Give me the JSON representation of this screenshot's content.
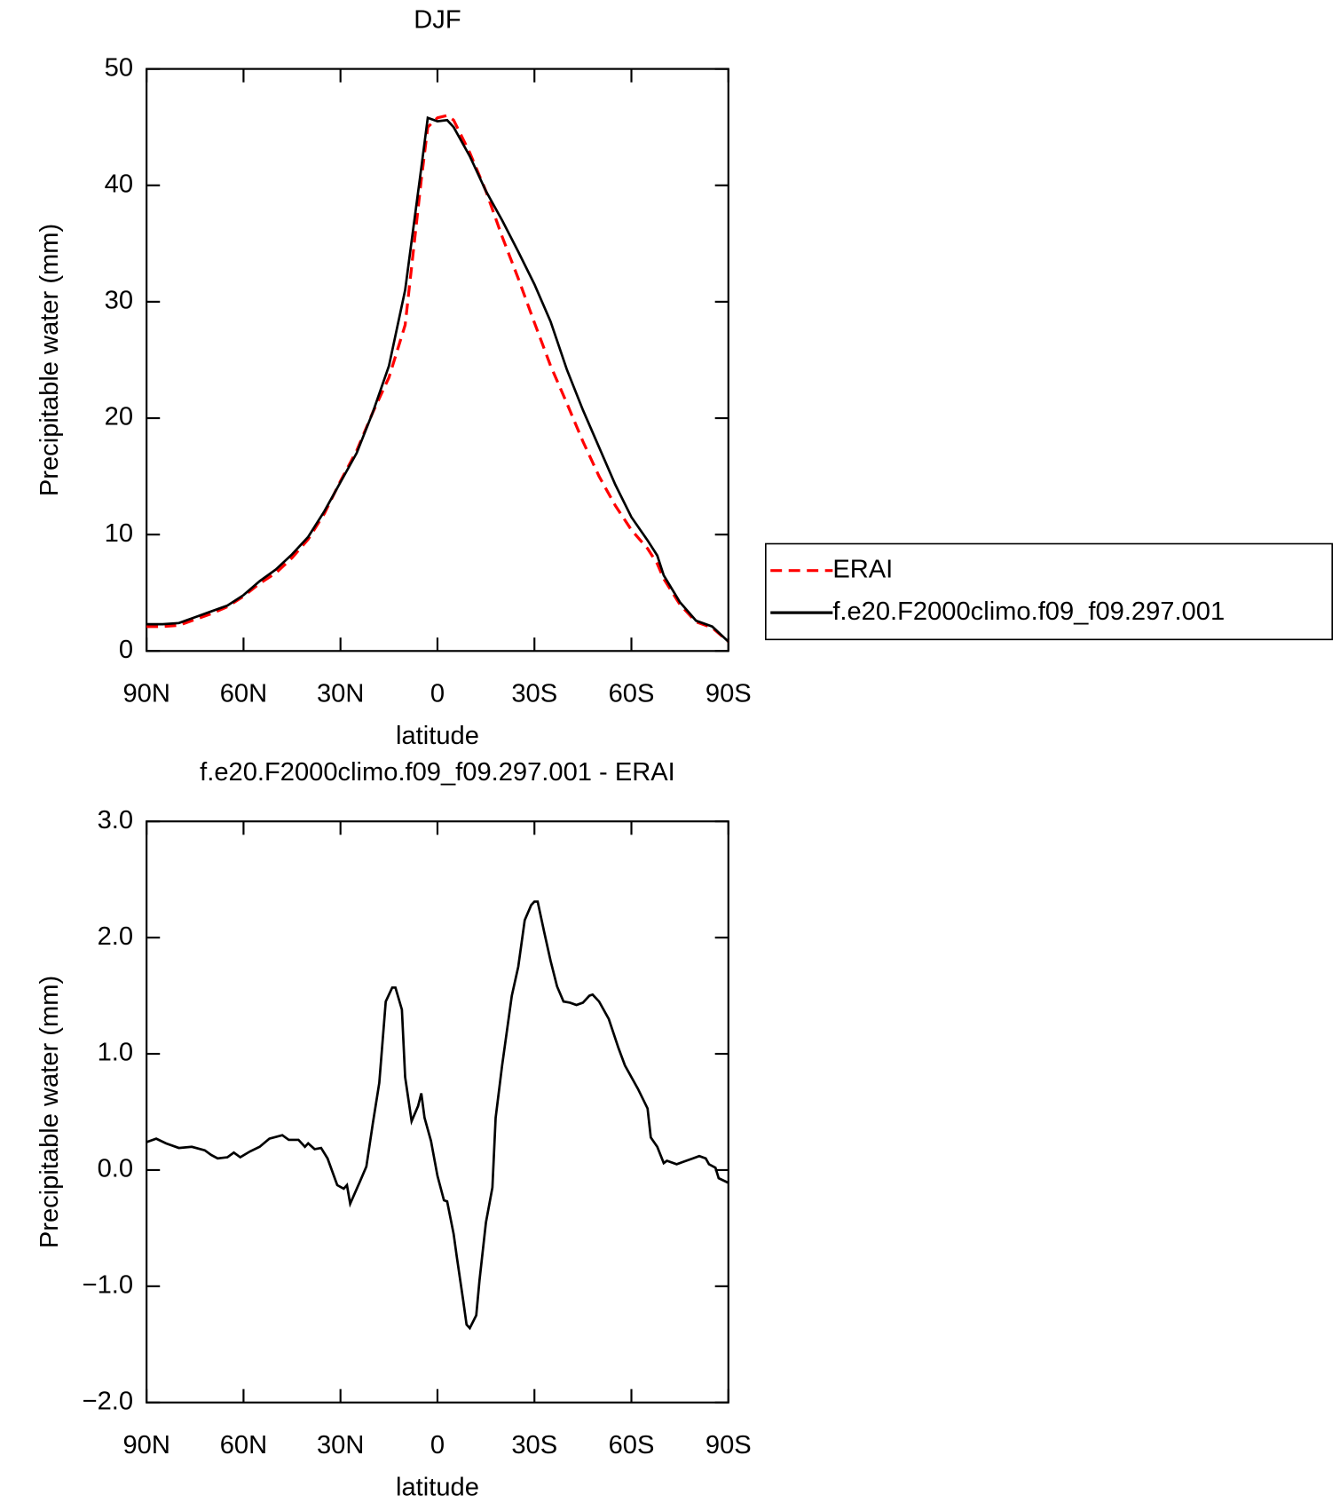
{
  "chart_data": [
    {
      "type": "line",
      "title": "DJF",
      "xlabel": "latitude",
      "ylabel": "Precipitable water (mm)",
      "x": [
        90,
        85,
        80,
        75,
        70,
        65,
        60,
        55,
        50,
        45,
        40,
        35,
        30,
        25,
        20,
        15,
        10,
        5,
        3,
        0,
        -3,
        -5,
        -10,
        -15,
        -20,
        -25,
        -30,
        -35,
        -40,
        -45,
        -50,
        -55,
        -60,
        -65,
        -68,
        -70,
        -75,
        -80,
        -85,
        -90
      ],
      "series": [
        {
          "name": "ERAI",
          "color": "#ff0000",
          "line_style": "dashed",
          "values": [
            2.1,
            2.1,
            2.2,
            2.7,
            3.2,
            3.8,
            4.7,
            5.8,
            6.7,
            8.0,
            9.6,
            11.8,
            14.6,
            17.2,
            20.5,
            23.5,
            28.0,
            40.5,
            45.0,
            45.8,
            46.0,
            45.6,
            42.8,
            39.5,
            35.6,
            32.0,
            28.2,
            24.5,
            21.3,
            18.0,
            15.0,
            12.5,
            10.4,
            8.8,
            7.5,
            6.2,
            4.0,
            2.5,
            2.0,
            0.8
          ]
        },
        {
          "name": "f.e20.F2000climo.f09_f09.297.001",
          "color": "#000000",
          "line_style": "solid",
          "values": [
            2.3,
            2.3,
            2.4,
            2.9,
            3.4,
            3.9,
            4.8,
            6.0,
            7.0,
            8.3,
            9.8,
            12.0,
            14.5,
            17.0,
            20.5,
            24.5,
            31.0,
            41.5,
            45.8,
            45.5,
            45.6,
            45.0,
            42.5,
            39.5,
            37.0,
            34.3,
            31.5,
            28.3,
            24.2,
            20.7,
            17.5,
            14.3,
            11.5,
            9.5,
            8.2,
            6.5,
            4.2,
            2.6,
            2.1,
            0.8
          ]
        }
      ],
      "xlim": [
        90,
        -90
      ],
      "xticks": [
        {
          "value": 90,
          "label": "90N"
        },
        {
          "value": 60,
          "label": "60N"
        },
        {
          "value": 30,
          "label": "30N"
        },
        0,
        {
          "value": -30,
          "label": "30S"
        },
        {
          "value": -60,
          "label": "60S"
        },
        {
          "value": -90,
          "label": "90S"
        }
      ],
      "ylim": [
        0,
        50
      ],
      "yticks": [
        0,
        10,
        20,
        30,
        40,
        50
      ],
      "legend": "right"
    },
    {
      "type": "line",
      "title": "f.e20.F2000climo.f09_f09.297.001 - ERAI",
      "xlabel": "latitude",
      "ylabel": "Precipitable water (mm)",
      "x": [
        90,
        87,
        84,
        80,
        76,
        72,
        70,
        68,
        65,
        63,
        61,
        58,
        55,
        52,
        48,
        46,
        43,
        41,
        40,
        38,
        36,
        34,
        31,
        29,
        28,
        27,
        24,
        22,
        20,
        18,
        16,
        14,
        13,
        11,
        10,
        8,
        6,
        5,
        4,
        2,
        0,
        -2,
        -3,
        -5,
        -6,
        -8,
        -9,
        -10,
        -12,
        -13,
        -15,
        -17,
        -18,
        -20,
        -23,
        -25,
        -27,
        -29,
        -30,
        -31,
        -33,
        -35,
        -37,
        -39,
        -41,
        -43,
        -45,
        -47,
        -48,
        -50,
        -53,
        -56,
        -58,
        -62,
        -65,
        -66,
        -68,
        -70,
        -71,
        -74,
        -76,
        -79,
        -81,
        -83,
        -84,
        -86,
        -87,
        -90
      ],
      "series": [
        {
          "color": "#000000",
          "line_style": "solid",
          "values": [
            0.24,
            0.27,
            0.23,
            0.19,
            0.2,
            0.17,
            0.13,
            0.1,
            0.11,
            0.15,
            0.11,
            0.16,
            0.2,
            0.27,
            0.3,
            0.26,
            0.26,
            0.2,
            0.23,
            0.18,
            0.19,
            0.1,
            -0.13,
            -0.16,
            -0.13,
            -0.29,
            -0.1,
            0.03,
            0.4,
            0.75,
            1.45,
            1.57,
            1.57,
            1.38,
            0.8,
            0.42,
            0.55,
            0.66,
            0.45,
            0.25,
            -0.05,
            -0.26,
            -0.27,
            -0.55,
            -0.75,
            -1.13,
            -1.33,
            -1.36,
            -1.25,
            -0.95,
            -0.45,
            -0.15,
            0.45,
            0.9,
            1.5,
            1.75,
            2.15,
            2.28,
            2.31,
            2.31,
            2.05,
            1.8,
            1.58,
            1.45,
            1.44,
            1.42,
            1.44,
            1.5,
            1.51,
            1.45,
            1.3,
            1.05,
            0.9,
            0.7,
            0.53,
            0.28,
            0.2,
            0.06,
            0.08,
            0.05,
            0.07,
            0.1,
            0.12,
            0.1,
            0.05,
            0.02,
            -0.07,
            -0.11
          ]
        }
      ],
      "xlim": [
        90,
        -90
      ],
      "xticks": [
        {
          "value": 90,
          "label": "90N"
        },
        {
          "value": 60,
          "label": "60N"
        },
        {
          "value": 30,
          "label": "30N"
        },
        0,
        {
          "value": -30,
          "label": "30S"
        },
        {
          "value": -60,
          "label": "60S"
        },
        {
          "value": -90,
          "label": "90S"
        }
      ],
      "ylim": [
        -2,
        3
      ],
      "yticks": [
        {
          "value": -2,
          "label": "−2.0"
        },
        {
          "value": -1,
          "label": "−1.0"
        },
        {
          "value": 0,
          "label": "0.0"
        },
        {
          "value": 1,
          "label": "1.0"
        },
        {
          "value": 2,
          "label": "2.0"
        },
        {
          "value": 3,
          "label": "3.0"
        }
      ]
    }
  ]
}
